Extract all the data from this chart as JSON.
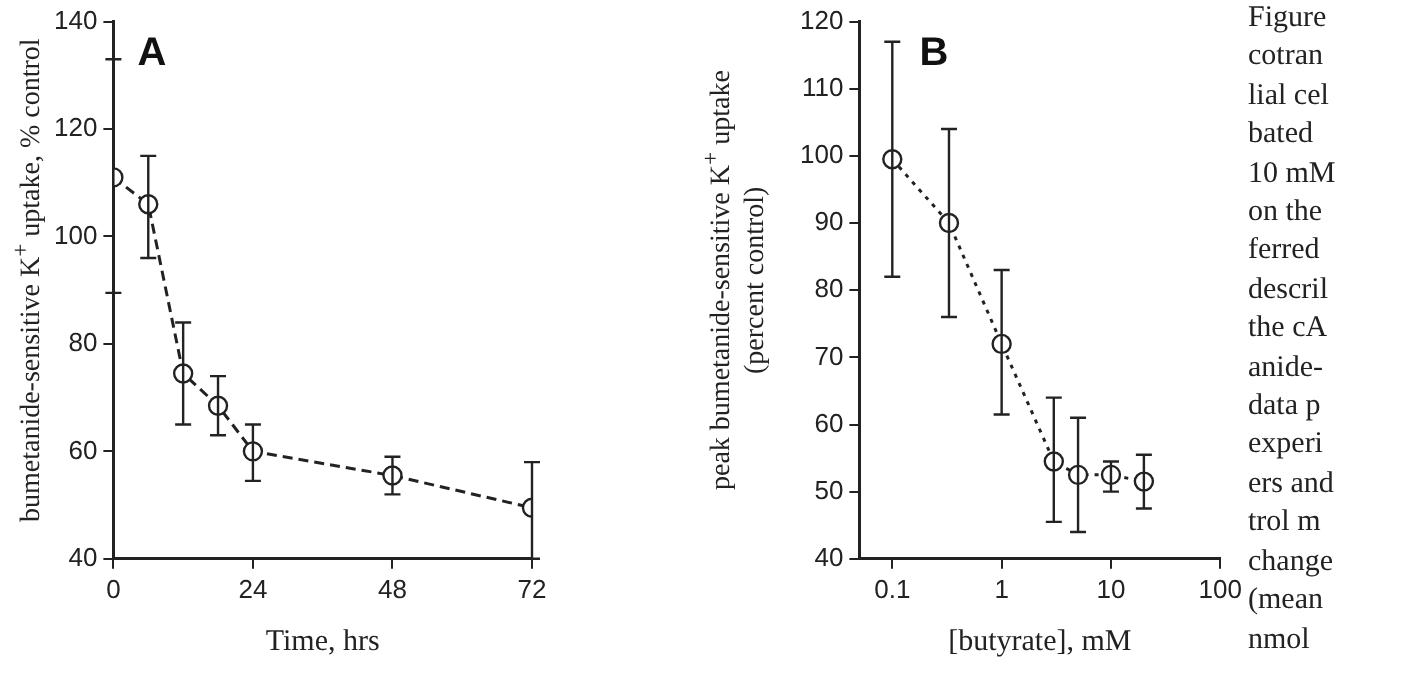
{
  "chart_data": [
    {
      "type": "line",
      "title": "A",
      "xlabel": "Time, hrs",
      "ylabel": "bumetanide-sensitive K$^{+}$ uptake, % control",
      "x": [
        0,
        6,
        12,
        18,
        24,
        48,
        72
      ],
      "values": [
        111,
        106,
        74.5,
        68.5,
        60,
        55.5,
        49.5
      ],
      "errors": [
        [
          89.5,
          133
        ],
        [
          96,
          115
        ],
        [
          65,
          84
        ],
        [
          63,
          74
        ],
        [
          54.5,
          65
        ],
        [
          52,
          59
        ],
        [
          40,
          58
        ]
      ],
      "color": "#222222",
      "marker": "circle",
      "line_style": "dashed",
      "xlim": [
        0,
        72
      ],
      "xticks": [
        0,
        24,
        48,
        72
      ],
      "ylim": [
        40,
        140
      ],
      "yticks": [
        40,
        60,
        80,
        100,
        120,
        140
      ],
      "grid": false,
      "legend": false
    },
    {
      "type": "line",
      "title": "B",
      "xlabel": "[butyrate], mM",
      "ylabel": "peak bumetanide-sensitive K$^{+}$ uptake\n(percent control)",
      "x": [
        0.1,
        0.33,
        1,
        3,
        5,
        10,
        20
      ],
      "values": [
        99.5,
        90,
        72,
        54.5,
        52.5,
        52.5,
        51.5
      ],
      "errors": [
        [
          82,
          117
        ],
        [
          76,
          104
        ],
        [
          61.5,
          83
        ],
        [
          45.5,
          64
        ],
        [
          44,
          61
        ],
        [
          50,
          54.5
        ],
        [
          47.5,
          55.5
        ]
      ],
      "color": "#222222",
      "marker": "circle",
      "line_style": "dotted",
      "log": "x",
      "xlim": [
        0.05,
        100
      ],
      "xticks": [
        0.1,
        1,
        10,
        100
      ],
      "ylim": [
        40,
        120
      ],
      "yticks": [
        40,
        50,
        60,
        70,
        80,
        90,
        100,
        110,
        120
      ],
      "grid": false,
      "legend": false,
      "annotations": [
        "Figure\ncotran\nlial cel\nbated\n10 mM\non the\nferred\ndescril\nthe cA\nanide-\ndata p\nexperi\ners and\ntrol m\nchange\n(mean\nnmol"
      ]
    }
  ]
}
